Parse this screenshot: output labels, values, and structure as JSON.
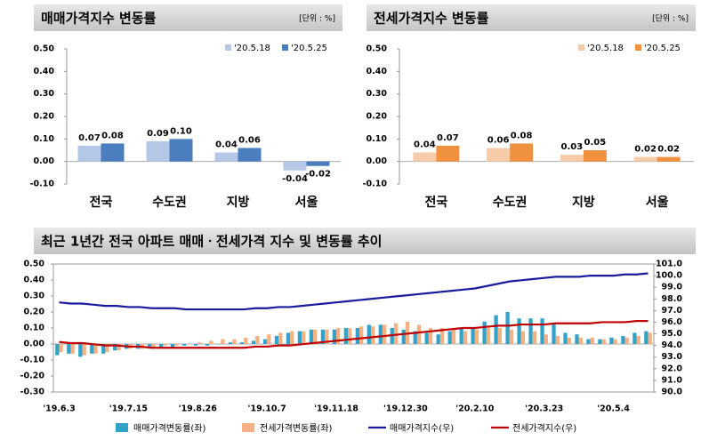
{
  "chart_data": [
    {
      "type": "bar",
      "title": "매매가격지수 변동률",
      "unit": "[단위 : %]",
      "categories": [
        "전국",
        "수도권",
        "지방",
        "서울"
      ],
      "series": [
        {
          "name": "'20.5.18",
          "color": "#b4c7e7",
          "values": [
            0.07,
            0.09,
            0.04,
            -0.04
          ],
          "value_labels": [
            "0.07",
            "0.09",
            "0.04",
            "-0.04"
          ]
        },
        {
          "name": "'20.5.25",
          "color": "#4a7ebf",
          "values": [
            0.08,
            0.1,
            0.06,
            -0.02
          ],
          "value_labels": [
            "0.08",
            "0.10",
            "0.06",
            "-0.02"
          ]
        }
      ],
      "ylim": [
        -0.1,
        0.5
      ],
      "yticks": [
        {
          "value": -0.1,
          "label": "-0.10"
        },
        {
          "value": 0,
          "label": "0.00"
        },
        {
          "value": 0.1,
          "label": "0.10"
        },
        {
          "value": 0.2,
          "label": "0.20"
        },
        {
          "value": 0.3,
          "label": "0.30"
        },
        {
          "value": 0.4,
          "label": "0.40"
        },
        {
          "value": 0.5,
          "label": "0.50"
        }
      ]
    },
    {
      "type": "bar",
      "title": "전세가격지수 변동률",
      "unit": "[단위 : %]",
      "categories": [
        "전국",
        "수도권",
        "지방",
        "서울"
      ],
      "series": [
        {
          "name": "'20.5.18",
          "color": "#f8cba8",
          "values": [
            0.04,
            0.06,
            0.03,
            0.02
          ],
          "value_labels": [
            "0.04",
            "0.06",
            "0.03",
            "0.02"
          ]
        },
        {
          "name": "'20.5.25",
          "color": "#f0913f",
          "values": [
            0.07,
            0.08,
            0.05,
            0.02
          ],
          "value_labels": [
            "0.07",
            "0.08",
            "0.05",
            "0.02"
          ]
        }
      ],
      "ylim": [
        -0.1,
        0.5
      ],
      "yticks": [
        {
          "value": -0.1,
          "label": "-0.10"
        },
        {
          "value": 0,
          "label": "0.00"
        },
        {
          "value": 0.1,
          "label": "0.10"
        },
        {
          "value": 0.2,
          "label": "0.20"
        },
        {
          "value": 0.3,
          "label": "0.30"
        },
        {
          "value": 0.4,
          "label": "0.40"
        },
        {
          "value": 0.5,
          "label": "0.50"
        }
      ]
    },
    {
      "type": "combo",
      "title": "최근 1년간 전국 아파트 매매ㆍ전세가격 지수 및 변동률 추이",
      "categories": [
        "'19.6.3",
        null,
        null,
        null,
        null,
        null,
        "'19.7.15",
        null,
        null,
        null,
        null,
        null,
        "'19.8.26",
        null,
        null,
        null,
        null,
        null,
        "'19.10.7",
        null,
        null,
        null,
        null,
        null,
        "'19.11.18",
        null,
        null,
        null,
        null,
        null,
        "'19.12.30",
        null,
        null,
        null,
        null,
        null,
        "'20.2.10",
        null,
        null,
        null,
        null,
        null,
        "'20.3.23",
        null,
        null,
        null,
        null,
        null,
        "'20.5.4",
        null,
        null,
        null
      ],
      "series": [
        {
          "name": "매매가격변동률(좌)",
          "type": "bar",
          "color": "#31a2c9",
          "values": [
            -0.07,
            -0.06,
            -0.08,
            -0.06,
            -0.06,
            -0.04,
            -0.03,
            -0.03,
            -0.02,
            -0.02,
            -0.02,
            -0.01,
            -0.01,
            -0.01,
            0.0,
            0.01,
            0.01,
            0.02,
            0.03,
            0.05,
            0.07,
            0.08,
            0.09,
            0.09,
            0.09,
            0.1,
            0.1,
            0.12,
            0.12,
            0.1,
            0.09,
            0.08,
            0.07,
            0.06,
            0.08,
            0.1,
            0.1,
            0.14,
            0.18,
            0.2,
            0.16,
            0.16,
            0.16,
            0.13,
            0.07,
            0.06,
            0.03,
            0.03,
            0.04,
            0.05,
            0.07,
            0.08
          ]
        },
        {
          "name": "전세가격변동률(좌)",
          "type": "bar",
          "color": "#f4b183",
          "values": [
            -0.05,
            -0.06,
            -0.07,
            -0.06,
            -0.05,
            -0.04,
            -0.03,
            -0.03,
            -0.02,
            -0.01,
            -0.01,
            0.0,
            0.01,
            0.02,
            0.03,
            0.03,
            0.04,
            0.05,
            0.06,
            0.07,
            0.08,
            0.08,
            0.09,
            0.09,
            0.1,
            0.1,
            0.11,
            0.11,
            0.12,
            0.13,
            0.14,
            0.12,
            0.1,
            0.1,
            0.09,
            0.08,
            0.09,
            0.1,
            0.1,
            0.09,
            0.08,
            0.08,
            0.06,
            0.05,
            0.04,
            0.04,
            0.04,
            0.03,
            0.03,
            0.04,
            0.05,
            0.07
          ]
        },
        {
          "name": "매매가격지수(우)",
          "type": "line",
          "axis": "y2",
          "color": "#1a1a9c",
          "values": [
            97.7,
            97.6,
            97.6,
            97.5,
            97.4,
            97.4,
            97.3,
            97.3,
            97.2,
            97.2,
            97.2,
            97.1,
            97.1,
            97.1,
            97.1,
            97.1,
            97.1,
            97.2,
            97.2,
            97.3,
            97.3,
            97.4,
            97.5,
            97.6,
            97.7,
            97.8,
            97.9,
            98.0,
            98.1,
            98.2,
            98.3,
            98.4,
            98.5,
            98.6,
            98.7,
            98.8,
            98.9,
            99.1,
            99.3,
            99.5,
            99.6,
            99.7,
            99.8,
            99.9,
            99.9,
            99.9,
            100.0,
            100.0,
            100.0,
            100.1,
            100.1,
            100.2
          ]
        },
        {
          "name": "전세가격지수(우)",
          "type": "line",
          "axis": "y2",
          "color": "#c00000",
          "values": [
            94.3,
            94.2,
            94.2,
            94.1,
            94.0,
            94.0,
            93.9,
            93.9,
            93.8,
            93.8,
            93.8,
            93.8,
            93.8,
            93.8,
            93.8,
            93.8,
            93.8,
            93.9,
            93.9,
            94.0,
            94.0,
            94.1,
            94.2,
            94.3,
            94.4,
            94.5,
            94.6,
            94.7,
            94.8,
            94.9,
            95.0,
            95.1,
            95.2,
            95.3,
            95.4,
            95.5,
            95.5,
            95.6,
            95.7,
            95.7,
            95.8,
            95.8,
            95.8,
            95.9,
            95.9,
            95.9,
            95.9,
            96.0,
            96.0,
            96.0,
            96.1,
            96.1
          ]
        }
      ],
      "ylim": [
        -0.3,
        0.5
      ],
      "yticks": [
        {
          "value": -0.3,
          "label": "-0.30"
        },
        {
          "value": -0.2,
          "label": "-0.20"
        },
        {
          "value": -0.1,
          "label": "-0.10"
        },
        {
          "value": 0,
          "label": "0.00"
        },
        {
          "value": 0.1,
          "label": "0.10"
        },
        {
          "value": 0.2,
          "label": "0.20"
        },
        {
          "value": 0.3,
          "label": "0.30"
        },
        {
          "value": 0.4,
          "label": "0.40"
        },
        {
          "value": 0.5,
          "label": "0.50"
        }
      ],
      "y2lim": [
        90,
        101
      ],
      "y2ticks": [
        {
          "value": 90,
          "label": "90.0"
        },
        {
          "value": 91,
          "label": "91.0"
        },
        {
          "value": 92,
          "label": "92.0"
        },
        {
          "value": 93,
          "label": "93.0"
        },
        {
          "value": 94,
          "label": "94.0"
        },
        {
          "value": 95,
          "label": "95.0"
        },
        {
          "value": 96,
          "label": "96.0"
        },
        {
          "value": 97,
          "label": "97.0"
        },
        {
          "value": 98,
          "label": "98.0"
        },
        {
          "value": 99,
          "label": "99.0"
        },
        {
          "value": 100,
          "label": "100.0"
        },
        {
          "value": 101,
          "label": "101.0"
        }
      ]
    }
  ]
}
